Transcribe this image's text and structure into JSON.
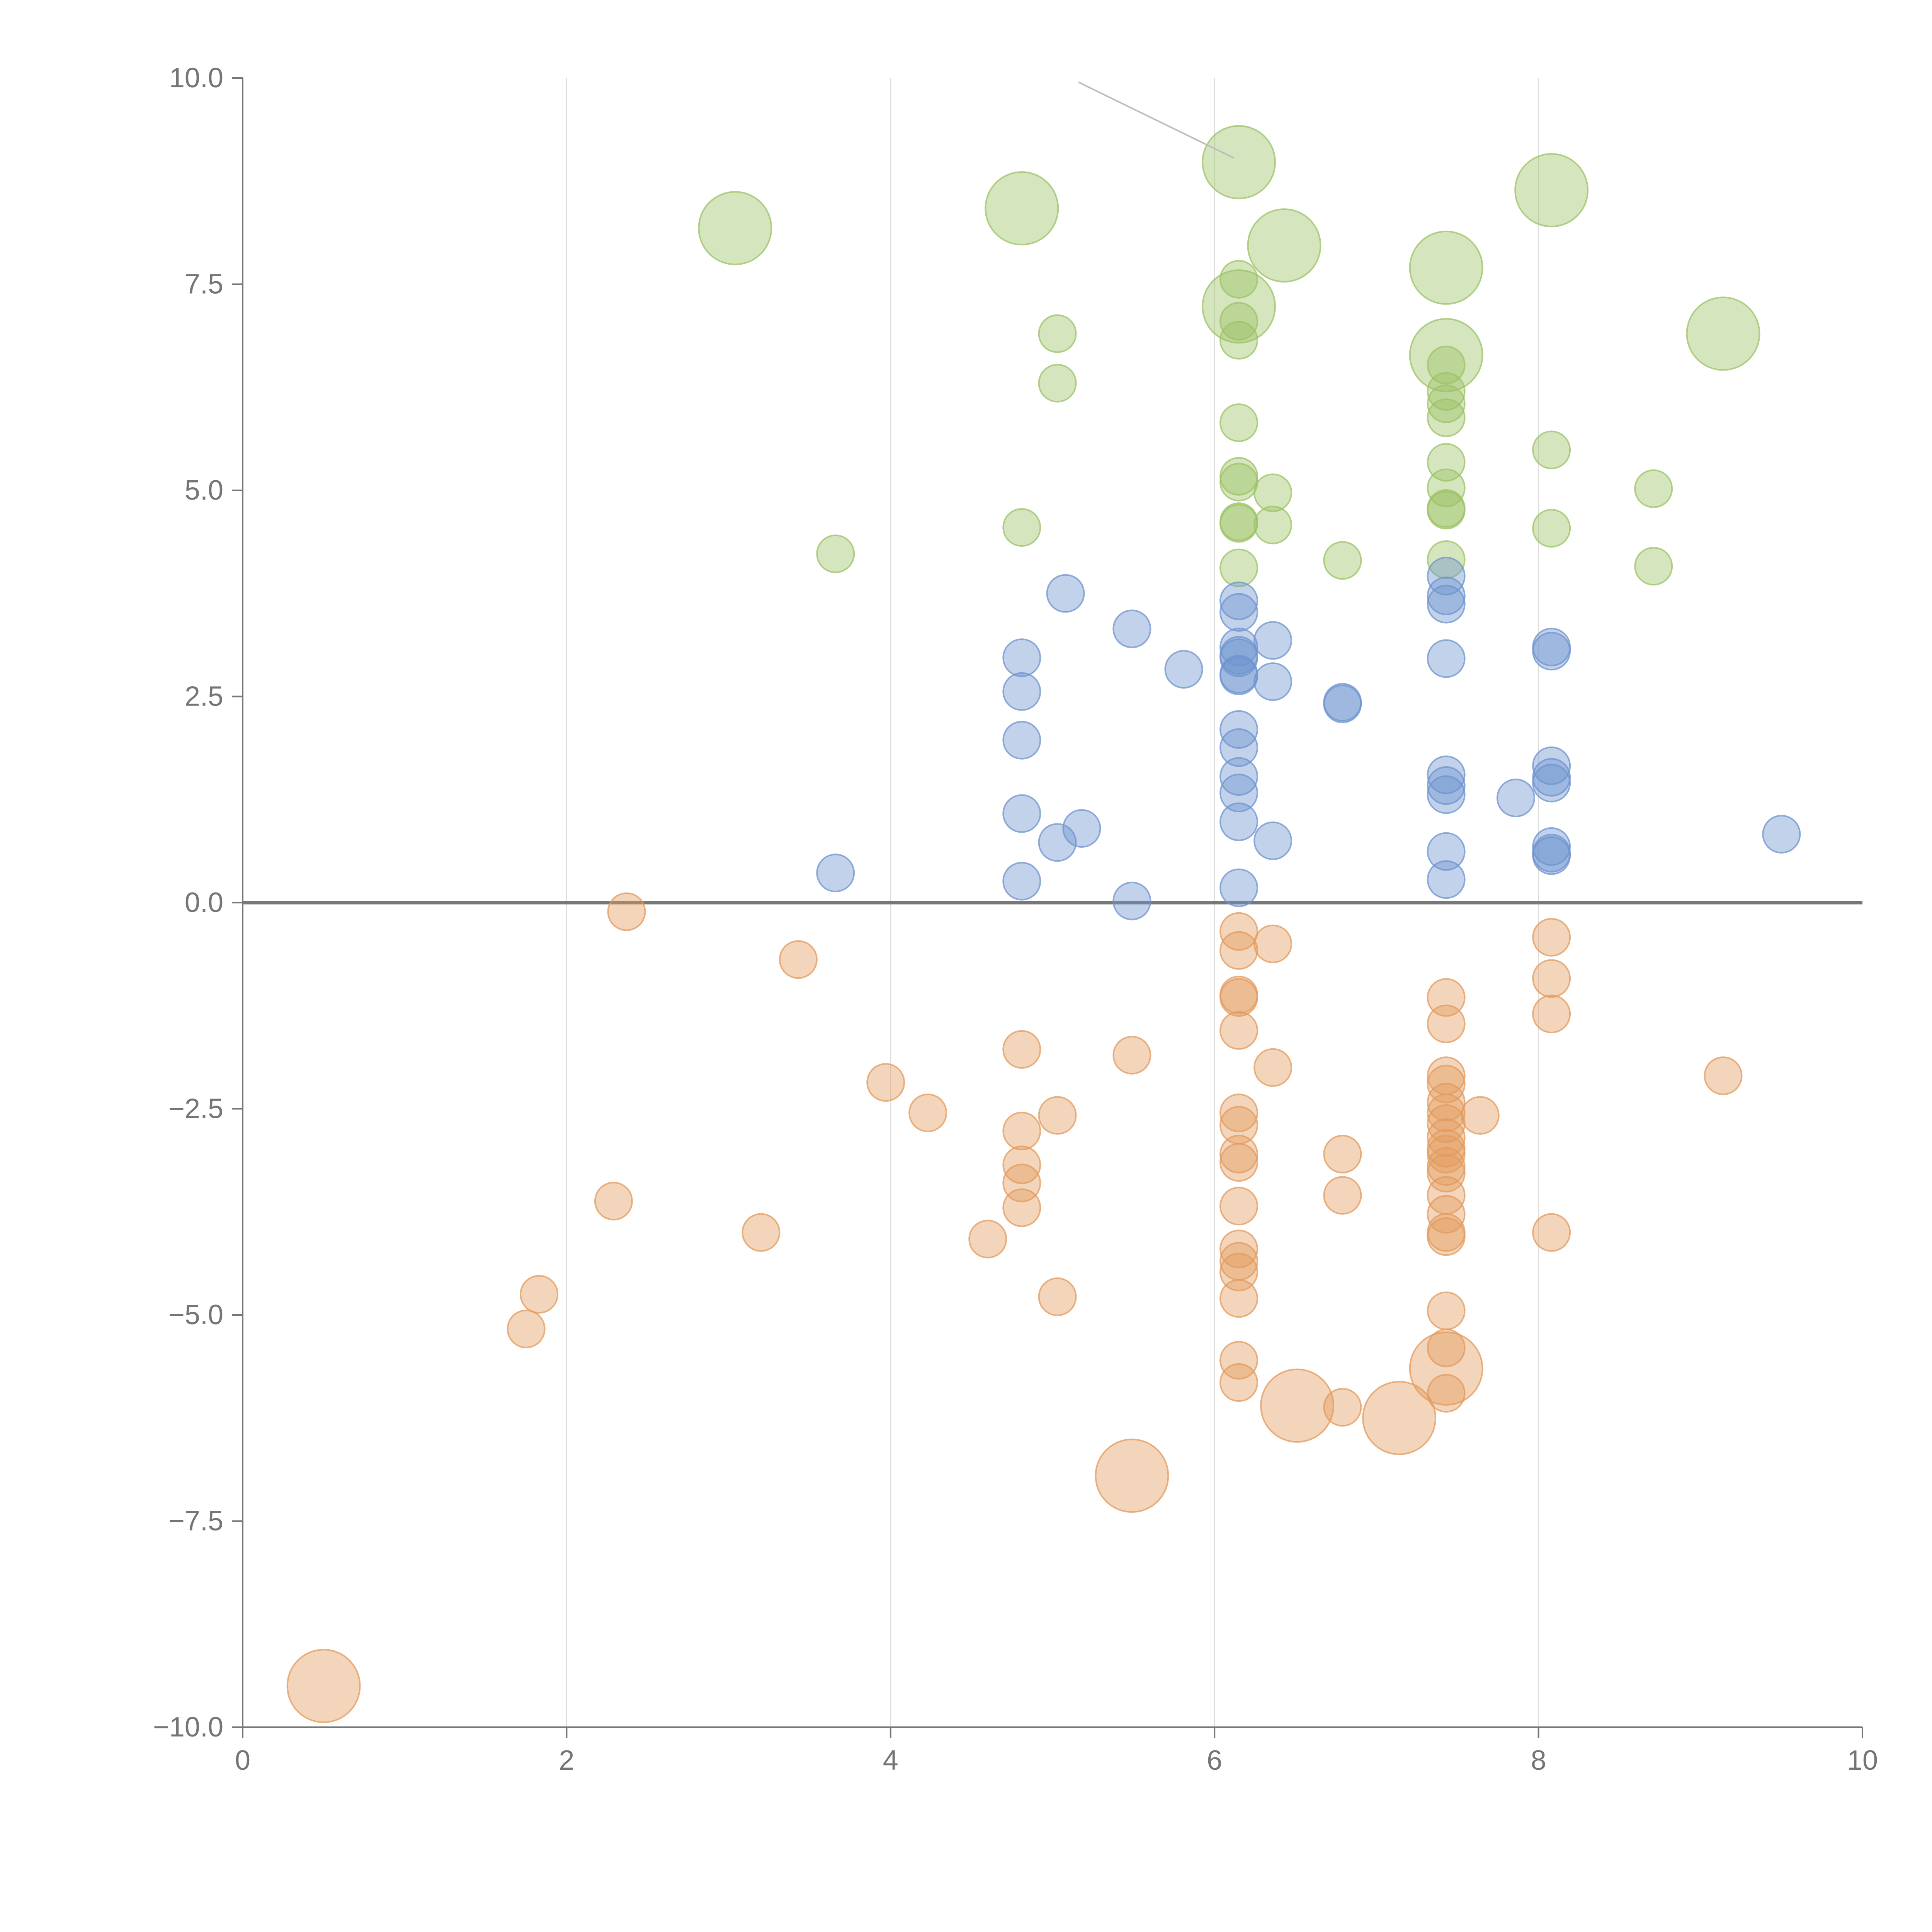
{
  "colors": {
    "green": "#9cc164",
    "blue": "#6d93cf",
    "orange": "#e39a5c",
    "axis": "#777777",
    "grid": "#dcdcdc",
    "text": "#757575"
  },
  "chart_data": {
    "type": "scatter",
    "subtype": "bubble",
    "title": "",
    "xlabel": "",
    "ylabel": "",
    "xlim": [
      0,
      10
    ],
    "ylim": [
      -10,
      10
    ],
    "x_ticks": [
      0,
      2,
      4,
      6,
      8,
      10
    ],
    "x_tick_labels": [
      "0",
      "2",
      "4",
      "6",
      "8",
      "10"
    ],
    "y_ticks": [
      10,
      7.5,
      5,
      2.5,
      0,
      -2.5,
      -5,
      -7.5,
      -10
    ],
    "y_tick_labels": [
      "10.0",
      "7.5",
      "5.0",
      "2.5",
      "0.0",
      "−2.5",
      "−5.0",
      "−7.5",
      "−10.0"
    ],
    "grid": "vertical",
    "zero_line": true,
    "legend": "none",
    "series": [
      {
        "name": "green",
        "color": "#9cc164",
        "points": [
          {
            "x": 3.04,
            "y": 8.18,
            "r": 2
          },
          {
            "x": 4.81,
            "y": 8.42,
            "r": 2
          },
          {
            "x": 6.15,
            "y": 8.98,
            "r": 2
          },
          {
            "x": 6.43,
            "y": 7.97,
            "r": 2
          },
          {
            "x": 7.43,
            "y": 7.7,
            "r": 2
          },
          {
            "x": 8.08,
            "y": 8.64,
            "r": 2
          },
          {
            "x": 6.15,
            "y": 7.23,
            "r": 2
          },
          {
            "x": 7.43,
            "y": 6.64,
            "r": 2
          },
          {
            "x": 9.14,
            "y": 6.9,
            "r": 2
          },
          {
            "x": 6.15,
            "y": 7.56,
            "r": 1
          },
          {
            "x": 6.15,
            "y": 7.05,
            "r": 1
          },
          {
            "x": 6.15,
            "y": 6.82,
            "r": 1
          },
          {
            "x": 5.03,
            "y": 6.9,
            "r": 1
          },
          {
            "x": 5.03,
            "y": 6.3,
            "r": 1
          },
          {
            "x": 6.15,
            "y": 5.82,
            "r": 1
          },
          {
            "x": 6.15,
            "y": 5.17,
            "r": 1
          },
          {
            "x": 6.15,
            "y": 5.1,
            "r": 1
          },
          {
            "x": 6.15,
            "y": 4.62,
            "r": 1
          },
          {
            "x": 6.15,
            "y": 4.6,
            "r": 1
          },
          {
            "x": 6.15,
            "y": 4.06,
            "r": 1
          },
          {
            "x": 6.36,
            "y": 4.97,
            "r": 1
          },
          {
            "x": 6.36,
            "y": 4.58,
            "r": 1
          },
          {
            "x": 4.81,
            "y": 4.55,
            "r": 1
          },
          {
            "x": 3.66,
            "y": 4.23,
            "r": 1
          },
          {
            "x": 6.79,
            "y": 4.15,
            "r": 1
          },
          {
            "x": 7.43,
            "y": 6.52,
            "r": 1
          },
          {
            "x": 7.43,
            "y": 6.2,
            "r": 1
          },
          {
            "x": 7.43,
            "y": 6.05,
            "r": 1
          },
          {
            "x": 7.43,
            "y": 5.88,
            "r": 1
          },
          {
            "x": 7.43,
            "y": 5.34,
            "r": 1
          },
          {
            "x": 7.43,
            "y": 5.03,
            "r": 1
          },
          {
            "x": 7.43,
            "y": 4.78,
            "r": 1
          },
          {
            "x": 7.43,
            "y": 4.76,
            "r": 1
          },
          {
            "x": 7.43,
            "y": 4.16,
            "r": 1
          },
          {
            "x": 8.08,
            "y": 5.49,
            "r": 1
          },
          {
            "x": 8.08,
            "y": 4.54,
            "r": 1
          },
          {
            "x": 8.71,
            "y": 5.02,
            "r": 1
          },
          {
            "x": 8.71,
            "y": 4.08,
            "r": 1
          }
        ]
      },
      {
        "name": "blue",
        "color": "#6d93cf",
        "points": [
          {
            "x": 3.66,
            "y": 0.36,
            "r": 1
          },
          {
            "x": 4.81,
            "y": 2.97,
            "r": 1
          },
          {
            "x": 4.81,
            "y": 2.56,
            "r": 1
          },
          {
            "x": 4.81,
            "y": 1.97,
            "r": 1
          },
          {
            "x": 4.81,
            "y": 1.08,
            "r": 1
          },
          {
            "x": 4.81,
            "y": 0.26,
            "r": 1
          },
          {
            "x": 5.03,
            "y": 0.73,
            "r": 1
          },
          {
            "x": 5.08,
            "y": 3.75,
            "r": 1
          },
          {
            "x": 5.18,
            "y": 0.9,
            "r": 1
          },
          {
            "x": 5.49,
            "y": 3.32,
            "r": 1
          },
          {
            "x": 5.49,
            "y": 0.02,
            "r": 1
          },
          {
            "x": 5.81,
            "y": 2.83,
            "r": 1
          },
          {
            "x": 6.15,
            "y": 3.66,
            "r": 1
          },
          {
            "x": 6.15,
            "y": 3.52,
            "r": 1
          },
          {
            "x": 6.15,
            "y": 3.1,
            "r": 1
          },
          {
            "x": 6.15,
            "y": 3.0,
            "r": 1
          },
          {
            "x": 6.15,
            "y": 2.97,
            "r": 1
          },
          {
            "x": 6.15,
            "y": 2.77,
            "r": 1
          },
          {
            "x": 6.15,
            "y": 2.75,
            "r": 1
          },
          {
            "x": 6.15,
            "y": 2.1,
            "r": 1
          },
          {
            "x": 6.15,
            "y": 1.88,
            "r": 1
          },
          {
            "x": 6.15,
            "y": 1.53,
            "r": 1
          },
          {
            "x": 6.15,
            "y": 1.33,
            "r": 1
          },
          {
            "x": 6.15,
            "y": 0.98,
            "r": 1
          },
          {
            "x": 6.15,
            "y": 0.18,
            "r": 1
          },
          {
            "x": 6.36,
            "y": 3.18,
            "r": 1
          },
          {
            "x": 6.36,
            "y": 2.68,
            "r": 1
          },
          {
            "x": 6.36,
            "y": 0.75,
            "r": 1
          },
          {
            "x": 6.79,
            "y": 2.43,
            "r": 1
          },
          {
            "x": 6.79,
            "y": 2.41,
            "r": 1
          },
          {
            "x": 7.43,
            "y": 3.96,
            "r": 1
          },
          {
            "x": 7.43,
            "y": 3.72,
            "r": 1
          },
          {
            "x": 7.43,
            "y": 3.62,
            "r": 1
          },
          {
            "x": 7.43,
            "y": 2.96,
            "r": 1
          },
          {
            "x": 7.43,
            "y": 1.55,
            "r": 1
          },
          {
            "x": 7.43,
            "y": 1.42,
            "r": 1
          },
          {
            "x": 7.43,
            "y": 1.31,
            "r": 1
          },
          {
            "x": 7.43,
            "y": 0.62,
            "r": 1
          },
          {
            "x": 7.43,
            "y": 0.28,
            "r": 1
          },
          {
            "x": 7.86,
            "y": 1.27,
            "r": 1
          },
          {
            "x": 8.08,
            "y": 3.1,
            "r": 1
          },
          {
            "x": 8.08,
            "y": 3.05,
            "r": 1
          },
          {
            "x": 8.08,
            "y": 1.66,
            "r": 1
          },
          {
            "x": 8.08,
            "y": 1.52,
            "r": 1
          },
          {
            "x": 8.08,
            "y": 1.45,
            "r": 1
          },
          {
            "x": 8.08,
            "y": 0.68,
            "r": 1
          },
          {
            "x": 8.08,
            "y": 0.6,
            "r": 1
          },
          {
            "x": 8.08,
            "y": 0.57,
            "r": 1
          },
          {
            "x": 9.5,
            "y": 0.83,
            "r": 1
          }
        ]
      },
      {
        "name": "orange",
        "color": "#e39a5c",
        "points": [
          {
            "x": 0.5,
            "y": -9.5,
            "r": 2
          },
          {
            "x": 5.49,
            "y": -6.95,
            "r": 2
          },
          {
            "x": 6.51,
            "y": -6.1,
            "r": 2
          },
          {
            "x": 7.14,
            "y": -6.25,
            "r": 2
          },
          {
            "x": 7.43,
            "y": -5.65,
            "r": 2
          },
          {
            "x": 1.75,
            "y": -5.17,
            "r": 1
          },
          {
            "x": 1.83,
            "y": -4.75,
            "r": 1
          },
          {
            "x": 2.29,
            "y": -3.62,
            "r": 1
          },
          {
            "x": 2.37,
            "y": -0.11,
            "r": 1
          },
          {
            "x": 3.2,
            "y": -4.0,
            "r": 1
          },
          {
            "x": 3.43,
            "y": -0.69,
            "r": 1
          },
          {
            "x": 3.97,
            "y": -2.18,
            "r": 1
          },
          {
            "x": 4.23,
            "y": -2.55,
            "r": 1
          },
          {
            "x": 4.6,
            "y": -4.08,
            "r": 1
          },
          {
            "x": 4.81,
            "y": -1.78,
            "r": 1
          },
          {
            "x": 4.81,
            "y": -2.77,
            "r": 1
          },
          {
            "x": 4.81,
            "y": -3.18,
            "r": 1
          },
          {
            "x": 4.81,
            "y": -3.4,
            "r": 1
          },
          {
            "x": 4.81,
            "y": -3.7,
            "r": 1
          },
          {
            "x": 5.03,
            "y": -2.58,
            "r": 1
          },
          {
            "x": 5.03,
            "y": -4.78,
            "r": 1
          },
          {
            "x": 5.49,
            "y": -1.85,
            "r": 1
          },
          {
            "x": 6.15,
            "y": -0.35,
            "r": 1
          },
          {
            "x": 6.15,
            "y": -0.58,
            "r": 1
          },
          {
            "x": 6.15,
            "y": -1.12,
            "r": 1
          },
          {
            "x": 6.15,
            "y": -1.15,
            "r": 1
          },
          {
            "x": 6.15,
            "y": -1.55,
            "r": 1
          },
          {
            "x": 6.15,
            "y": -2.55,
            "r": 1
          },
          {
            "x": 6.15,
            "y": -2.7,
            "r": 1
          },
          {
            "x": 6.15,
            "y": -3.05,
            "r": 1
          },
          {
            "x": 6.15,
            "y": -3.15,
            "r": 1
          },
          {
            "x": 6.15,
            "y": -3.68,
            "r": 1
          },
          {
            "x": 6.15,
            "y": -4.2,
            "r": 1
          },
          {
            "x": 6.15,
            "y": -4.35,
            "r": 1
          },
          {
            "x": 6.15,
            "y": -4.48,
            "r": 1
          },
          {
            "x": 6.15,
            "y": -4.8,
            "r": 1
          },
          {
            "x": 6.15,
            "y": -5.55,
            "r": 1
          },
          {
            "x": 6.15,
            "y": -5.82,
            "r": 1
          },
          {
            "x": 6.36,
            "y": -0.5,
            "r": 1
          },
          {
            "x": 6.36,
            "y": -2.0,
            "r": 1
          },
          {
            "x": 6.79,
            "y": -3.05,
            "r": 1
          },
          {
            "x": 6.79,
            "y": -3.55,
            "r": 1
          },
          {
            "x": 6.79,
            "y": -6.12,
            "r": 1
          },
          {
            "x": 7.43,
            "y": -1.15,
            "r": 1
          },
          {
            "x": 7.43,
            "y": -1.47,
            "r": 1
          },
          {
            "x": 7.43,
            "y": -2.1,
            "r": 1
          },
          {
            "x": 7.43,
            "y": -2.2,
            "r": 1
          },
          {
            "x": 7.43,
            "y": -2.42,
            "r": 1
          },
          {
            "x": 7.43,
            "y": -2.55,
            "r": 1
          },
          {
            "x": 7.43,
            "y": -2.68,
            "r": 1
          },
          {
            "x": 7.43,
            "y": -2.85,
            "r": 1
          },
          {
            "x": 7.43,
            "y": -2.98,
            "r": 1
          },
          {
            "x": 7.43,
            "y": -3.05,
            "r": 1
          },
          {
            "x": 7.43,
            "y": -3.2,
            "r": 1
          },
          {
            "x": 7.43,
            "y": -3.28,
            "r": 1
          },
          {
            "x": 7.43,
            "y": -3.55,
            "r": 1
          },
          {
            "x": 7.43,
            "y": -3.78,
            "r": 1
          },
          {
            "x": 7.43,
            "y": -4.0,
            "r": 1
          },
          {
            "x": 7.43,
            "y": -4.05,
            "r": 1
          },
          {
            "x": 7.43,
            "y": -4.95,
            "r": 1
          },
          {
            "x": 7.43,
            "y": -5.4,
            "r": 1
          },
          {
            "x": 7.43,
            "y": -5.95,
            "r": 1
          },
          {
            "x": 7.64,
            "y": -2.58,
            "r": 1
          },
          {
            "x": 8.08,
            "y": -0.42,
            "r": 1
          },
          {
            "x": 8.08,
            "y": -0.92,
            "r": 1
          },
          {
            "x": 8.08,
            "y": -1.35,
            "r": 1
          },
          {
            "x": 8.08,
            "y": -4.0,
            "r": 1
          },
          {
            "x": 9.14,
            "y": -2.1,
            "r": 1
          }
        ]
      }
    ],
    "leader_line": {
      "from": [
        5.16,
        9.95
      ],
      "to": [
        6.12,
        9.03
      ]
    }
  }
}
